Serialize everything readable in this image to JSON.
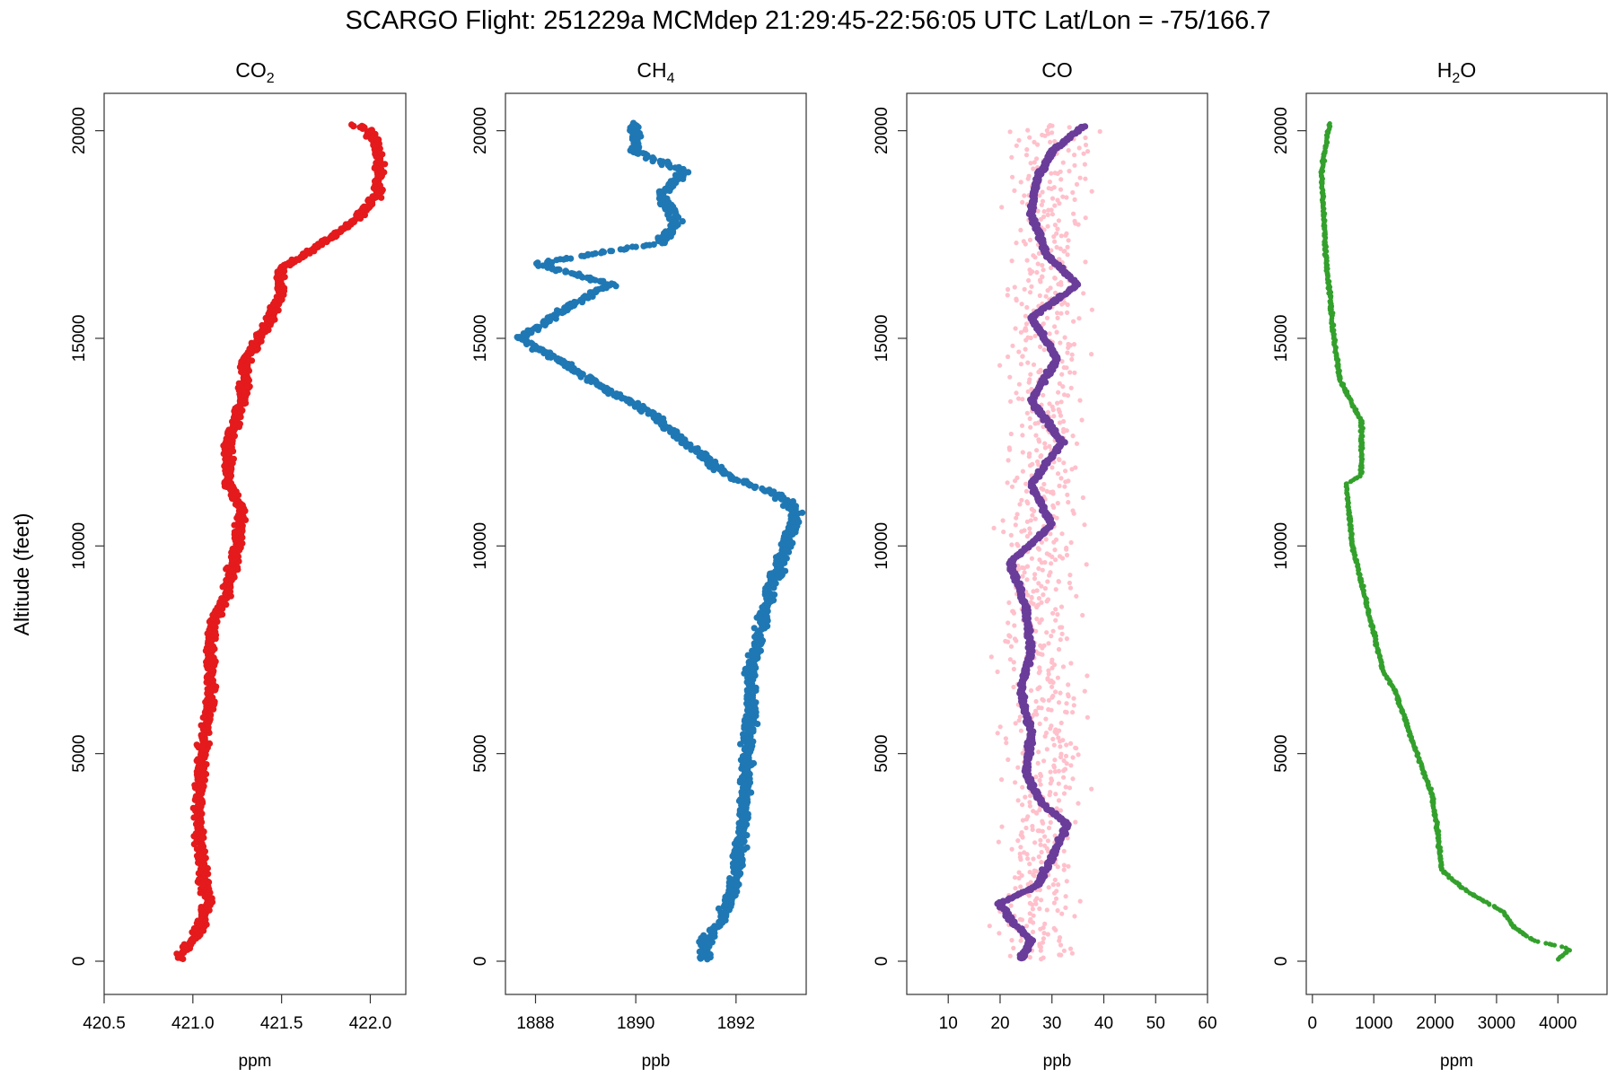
{
  "chart_data": {
    "type": "scatter",
    "title": "SCARGO Flight: 251229a  MCMdep  21:29:45-22:56:05 UTC  Lat/Lon = -75/166.7",
    "ylabel": "Altitude (feet)",
    "ylim": [
      -800,
      20900
    ],
    "yticks": [
      0,
      5000,
      10000,
      15000,
      20000
    ],
    "panels": [
      {
        "id": "co2",
        "title_main": "CO",
        "title_sub": "2",
        "xlabel": "ppm",
        "xlim": [
          420.5,
          422.2
        ],
        "xticks": [
          420.5,
          421.0,
          421.5,
          422.0
        ],
        "xtick_decimals": 1,
        "color": "#e41a1c",
        "series": [
          {
            "name": "CO2",
            "color": "#e41a1c",
            "profile": [
              [
                50,
                420.92
              ],
              [
                300,
                420.95
              ],
              [
                500,
                421.0
              ],
              [
                900,
                421.05
              ],
              [
                1500,
                421.08
              ],
              [
                2500,
                421.05
              ],
              [
                3500,
                421.03
              ],
              [
                5000,
                421.05
              ],
              [
                6500,
                421.1
              ],
              [
                8000,
                421.1
              ],
              [
                9000,
                421.2
              ],
              [
                10000,
                421.25
              ],
              [
                10800,
                421.28
              ],
              [
                11500,
                421.2
              ],
              [
                12500,
                421.2
              ],
              [
                13500,
                421.28
              ],
              [
                14500,
                421.3
              ],
              [
                15200,
                421.4
              ],
              [
                16000,
                421.5
              ],
              [
                16700,
                421.5
              ],
              [
                17200,
                421.7
              ],
              [
                17800,
                421.9
              ],
              [
                18500,
                422.05
              ],
              [
                19300,
                422.05
              ],
              [
                20000,
                422.0
              ],
              [
                20150,
                421.9
              ]
            ],
            "spread": 0.035
          }
        ]
      },
      {
        "id": "ch4",
        "title_main": "CH",
        "title_sub": "4",
        "xlabel": "ppb",
        "xlim": [
          1887.4,
          1893.4
        ],
        "xticks": [
          1888,
          1890,
          1892
        ],
        "xtick_decimals": 0,
        "color": "#1f78b4",
        "series": [
          {
            "name": "CH4",
            "color": "#1f78b4",
            "profile": [
              [
                50,
                1891.4
              ],
              [
                500,
                1891.4
              ],
              [
                1000,
                1891.7
              ],
              [
                2000,
                1892.0
              ],
              [
                3000,
                1892.1
              ],
              [
                4000,
                1892.2
              ],
              [
                5000,
                1892.2
              ],
              [
                6000,
                1892.3
              ],
              [
                7000,
                1892.3
              ],
              [
                8000,
                1892.5
              ],
              [
                9000,
                1892.7
              ],
              [
                10000,
                1893.0
              ],
              [
                10800,
                1893.2
              ],
              [
                11200,
                1892.9
              ],
              [
                11700,
                1891.8
              ],
              [
                12500,
                1891.0
              ],
              [
                13200,
                1890.3
              ],
              [
                13700,
                1889.5
              ],
              [
                14300,
                1888.7
              ],
              [
                15000,
                1887.7
              ],
              [
                15800,
                1888.7
              ],
              [
                16300,
                1889.5
              ],
              [
                16800,
                1888.0
              ],
              [
                17300,
                1890.5
              ],
              [
                17800,
                1890.8
              ],
              [
                18500,
                1890.5
              ],
              [
                19000,
                1891.0
              ],
              [
                19500,
                1890.0
              ],
              [
                20150,
                1890.0
              ]
            ],
            "spread": 0.15
          }
        ]
      },
      {
        "id": "co",
        "title_main": "CO",
        "title_sub": "",
        "xlabel": "ppb",
        "xlim": [
          2,
          60
        ],
        "xticks": [
          10,
          20,
          30,
          40,
          50,
          60
        ],
        "xtick_decimals": 0,
        "color": "#6a3d9a",
        "series": [
          {
            "name": "CO raw",
            "color": "#ffc0cb",
            "profile": [
              [
                50,
                27
              ],
              [
                2000,
                28
              ],
              [
                5000,
                28
              ],
              [
                10000,
                28
              ],
              [
                15000,
                29
              ],
              [
                20150,
                30
              ]
            ],
            "spread": 9
          },
          {
            "name": "CO smoothed",
            "color": "#6a3d9a",
            "profile": [
              [
                50,
                24
              ],
              [
                500,
                26
              ],
              [
                1000,
                22
              ],
              [
                1400,
                20
              ],
              [
                1800,
                27
              ],
              [
                2500,
                30
              ],
              [
                3300,
                33
              ],
              [
                3800,
                28
              ],
              [
                4500,
                25
              ],
              [
                5500,
                26
              ],
              [
                6500,
                24
              ],
              [
                7500,
                26
              ],
              [
                8500,
                25
              ],
              [
                9600,
                22
              ],
              [
                10500,
                30
              ],
              [
                11500,
                26
              ],
              [
                12500,
                32
              ],
              [
                13500,
                26
              ],
              [
                14500,
                31
              ],
              [
                15500,
                26
              ],
              [
                16300,
                35
              ],
              [
                17000,
                29
              ],
              [
                18000,
                26
              ],
              [
                18800,
                27
              ],
              [
                19500,
                30
              ],
              [
                20100,
                36
              ]
            ],
            "spread": 0.6
          }
        ]
      },
      {
        "id": "h2o",
        "title_main": "H",
        "title_sub": "2",
        "title_tail": "O",
        "xlabel": "ppm",
        "xlim": [
          -100,
          4800
        ],
        "xticks": [
          0,
          1000,
          2000,
          3000,
          4000
        ],
        "xtick_decimals": 0,
        "color": "#33a02c",
        "series": [
          {
            "name": "H2O",
            "color": "#33a02c",
            "profile": [
              [
                50,
                4000
              ],
              [
                300,
                4200
              ],
              [
                500,
                3600
              ],
              [
                800,
                3300
              ],
              [
                1200,
                3100
              ],
              [
                1700,
                2500
              ],
              [
                2200,
                2100
              ],
              [
                3000,
                2050
              ],
              [
                4000,
                1950
              ],
              [
                5000,
                1700
              ],
              [
                6500,
                1350
              ],
              [
                7000,
                1150
              ],
              [
                8500,
                900
              ],
              [
                10000,
                650
              ],
              [
                11500,
                550
              ],
              [
                11700,
                800
              ],
              [
                13000,
                800
              ],
              [
                14000,
                450
              ],
              [
                15000,
                350
              ],
              [
                17000,
                220
              ],
              [
                19000,
                150
              ],
              [
                19500,
                200
              ],
              [
                20150,
                280
              ]
            ],
            "spread": 25
          }
        ]
      }
    ]
  }
}
